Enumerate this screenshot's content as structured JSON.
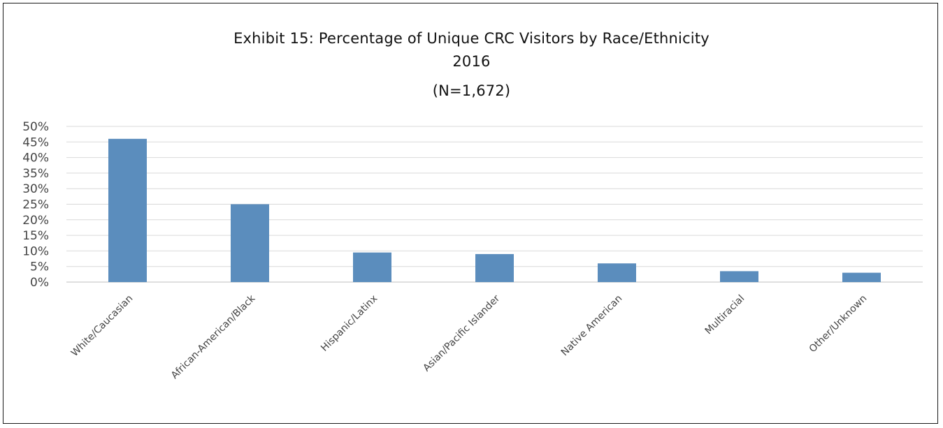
{
  "chart_data": {
    "type": "bar",
    "title_lines": [
      "Exhibit 15: Percentage of Unique CRC Visitors by Race/Ethnicity",
      "2016",
      "(N=1,672)"
    ],
    "categories": [
      "White/Caucasian",
      "African-American/Black",
      "Hispanic/Latinx",
      "Asian/Pacific Islander",
      "Native American",
      "Multiracial",
      "Other/Unknown"
    ],
    "values": [
      46,
      25,
      9.5,
      9,
      6,
      3.5,
      3
    ],
    "ylim": [
      0,
      50
    ],
    "yticks": [
      "0%",
      "5%",
      "10%",
      "15%",
      "20%",
      "25%",
      "30%",
      "35%",
      "40%",
      "45%",
      "50%"
    ],
    "grid": true,
    "colors": {
      "bar": "#5b8dbd",
      "grid": "#d9d9d9",
      "axis": "#bfbfbf"
    }
  }
}
